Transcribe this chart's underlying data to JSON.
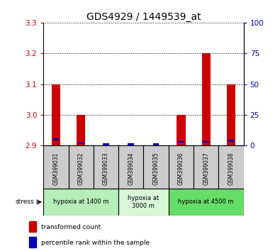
{
  "title": "GDS4929 / 1449539_at",
  "samples": [
    "GSM399031",
    "GSM399032",
    "GSM399033",
    "GSM399034",
    "GSM399035",
    "GSM399036",
    "GSM399037",
    "GSM399038"
  ],
  "red_values": [
    3.1,
    3.0,
    2.9,
    2.9,
    2.9,
    3.0,
    3.2,
    3.1
  ],
  "blue_pct": [
    5,
    2,
    1,
    1,
    1,
    3,
    3,
    4
  ],
  "y_min": 2.9,
  "y_max": 3.3,
  "y_ticks": [
    2.9,
    3.0,
    3.1,
    3.2,
    3.3
  ],
  "y2_ticks": [
    0,
    25,
    50,
    75,
    100
  ],
  "groups": [
    {
      "label": "hypoxia at 1400 m",
      "start": 0,
      "end": 3,
      "color": "#b8eeb8"
    },
    {
      "label": "hypoxia at\n3000 m",
      "start": 3,
      "end": 5,
      "color": "#d8f8d8"
    },
    {
      "label": "hypoxia at 4500 m",
      "start": 5,
      "end": 8,
      "color": "#66dd66"
    }
  ],
  "stress_label": "stress",
  "legend_red": "transformed count",
  "legend_blue": "percentile rank within the sample",
  "bar_width": 0.35,
  "red_color": "#cc0000",
  "blue_color": "#0000bb",
  "ylabel_left_color": "#cc0000",
  "ylabel_right_color": "#0000bb",
  "sample_box_color": "#cccccc",
  "tick_fontsize": 7.5,
  "label_fontsize": 7,
  "title_fontsize": 10
}
